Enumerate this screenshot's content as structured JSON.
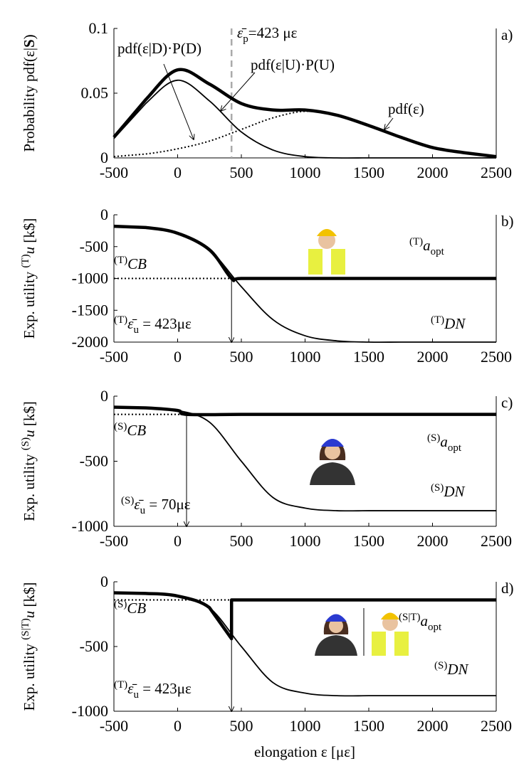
{
  "chart_data": [
    {
      "type": "line",
      "panel_label": "a)",
      "ylabel": {
        "pre": "Probability pdf(ε|",
        "bold": "S",
        "post": ")"
      },
      "xlabel": "elongation ε [με]",
      "xlim": [
        -500,
        2500
      ],
      "xticks": [
        -500,
        0,
        500,
        1000,
        1500,
        2000,
        2500
      ],
      "ylim": [
        0,
        0.1
      ],
      "yticks": [
        0,
        0.05,
        0.1
      ],
      "threshold": 423,
      "threshold_label": {
        "base": "ε̄",
        "sub": "p",
        "post": "=423 με"
      },
      "series": [
        {
          "name": {
            "pre": "pdf(ε)"
          },
          "color": "#000000",
          "style": "thick",
          "x": [
            -500,
            -250,
            0,
            250,
            500,
            750,
            1000,
            1250,
            1500,
            1750,
            2000,
            2250,
            2500
          ],
          "values": [
            0.016,
            0.045,
            0.068,
            0.057,
            0.042,
            0.037,
            0.037,
            0.033,
            0.025,
            0.016,
            0.008,
            0.004,
            0.001
          ]
        },
        {
          "name": {
            "pre": "pdf(ε|D)·P(D)"
          },
          "color": "#000000",
          "style": "thin",
          "x": [
            -500,
            -250,
            0,
            250,
            500,
            750,
            1000,
            1250,
            1500,
            1750,
            2000,
            2250,
            2500
          ],
          "values": [
            0.015,
            0.042,
            0.06,
            0.044,
            0.02,
            0.006,
            0.001,
            0,
            0,
            0,
            0,
            0,
            0
          ]
        },
        {
          "name": {
            "pre": "pdf(ε|U)·P(U)"
          },
          "color": "#000000",
          "style": "dotted",
          "x": [
            -500,
            -250,
            0,
            250,
            500,
            750,
            1000,
            1250,
            1500,
            1750,
            2000,
            2250,
            2500
          ],
          "values": [
            0.001,
            0.003,
            0.007,
            0.013,
            0.022,
            0.031,
            0.036,
            0.033,
            0.025,
            0.016,
            0.008,
            0.004,
            0.001
          ]
        }
      ]
    },
    {
      "type": "line",
      "panel_label": "b)",
      "ylabel": {
        "pre": "Exp. utility ",
        "sup": "(T)",
        "base": "u",
        "post": "  [k$]"
      },
      "xlim": [
        -500,
        2500
      ],
      "xticks": [
        -500,
        0,
        500,
        1000,
        1500,
        2000,
        2500
      ],
      "ylim": [
        -2000,
        0
      ],
      "yticks": [
        -2000,
        -1500,
        -1000,
        -500,
        0
      ],
      "threshold": 423,
      "threshold_label": {
        "sup": "(T)",
        "base": "ε̄",
        "sub": "u",
        "post": " = 423με"
      },
      "series": [
        {
          "name": {
            "sup": "(T)",
            "base": "DN"
          },
          "color": "#000000",
          "style": "thin",
          "x": [
            -500,
            -250,
            0,
            250,
            500,
            750,
            1000,
            1250,
            1500,
            1750,
            2000,
            2250,
            2500
          ],
          "values": [
            -180,
            -200,
            -290,
            -550,
            -1130,
            -1650,
            -1900,
            -1980,
            -2000,
            -2000,
            -2000,
            -2000,
            -2000
          ]
        },
        {
          "name": {
            "sup": "(T)",
            "base": "CB"
          },
          "color": "#000000",
          "style": "dotted",
          "x": [
            -500,
            2500
          ],
          "values": [
            -1000,
            -1000
          ]
        },
        {
          "name": {
            "sup": "(T)",
            "base": "a",
            "sub": "opt"
          },
          "color": "#000000",
          "style": "thick",
          "x": [
            -500,
            -250,
            0,
            250,
            423,
            500,
            1000,
            1500,
            2000,
            2500
          ],
          "values": [
            -180,
            -200,
            -290,
            -550,
            -1000,
            -1000,
            -1000,
            -1000,
            -1000,
            -1000
          ]
        }
      ]
    },
    {
      "type": "line",
      "panel_label": "c)",
      "ylabel": {
        "pre": "Exp. utility ",
        "sup": "(S)",
        "base": "u",
        "post": "  [k$]"
      },
      "xlim": [
        -500,
        2500
      ],
      "xticks": [
        -500,
        0,
        500,
        1000,
        1500,
        2000,
        2500
      ],
      "ylim": [
        -1000,
        0
      ],
      "yticks": [
        -1000,
        -500,
        0
      ],
      "threshold": 70,
      "threshold_label": {
        "sup": "(S)",
        "base": "ε̄",
        "sub": "u",
        "post": " = 70με"
      },
      "series": [
        {
          "name": {
            "sup": "(S)",
            "base": "DN"
          },
          "color": "#000000",
          "style": "thin",
          "x": [
            -500,
            -250,
            0,
            250,
            500,
            750,
            1000,
            1250,
            1500,
            1750,
            2000,
            2250,
            2500
          ],
          "values": [
            -85,
            -90,
            -110,
            -200,
            -500,
            -780,
            -860,
            -880,
            -880,
            -880,
            -880,
            -880,
            -880
          ]
        },
        {
          "name": {
            "sup": "(S)",
            "base": "CB"
          },
          "color": "#000000",
          "style": "dotted",
          "x": [
            -500,
            2500
          ],
          "values": [
            -140,
            -140
          ]
        },
        {
          "name": {
            "sup": "(S)",
            "base": "a",
            "sub": "opt"
          },
          "color": "#000000",
          "style": "thick",
          "x": [
            -500,
            -250,
            0,
            70,
            500,
            1000,
            1500,
            2000,
            2500
          ],
          "values": [
            -85,
            -90,
            -110,
            -140,
            -140,
            -140,
            -140,
            -140,
            -140
          ]
        }
      ]
    },
    {
      "type": "line",
      "panel_label": "d)",
      "ylabel": {
        "pre": "Exp. utility ",
        "sup": "(S|T)",
        "base": "u",
        "post": "  [k$]"
      },
      "xlim": [
        -500,
        2500
      ],
      "xticks": [
        -500,
        0,
        500,
        1000,
        1500,
        2000,
        2500
      ],
      "ylim": [
        -1000,
        0
      ],
      "yticks": [
        -1000,
        -500,
        0
      ],
      "threshold": 423,
      "threshold_label": {
        "sup": "(T)",
        "base": "ε̄",
        "sub": "u",
        "post": " = 423με"
      },
      "series": [
        {
          "name": {
            "sup": "(S)",
            "base": "DN"
          },
          "color": "#000000",
          "style": "thin",
          "x": [
            -500,
            -250,
            0,
            250,
            500,
            750,
            1000,
            1250,
            1500,
            1750,
            2000,
            2250,
            2500
          ],
          "values": [
            -85,
            -90,
            -110,
            -200,
            -500,
            -780,
            -860,
            -880,
            -880,
            -880,
            -880,
            -880,
            -880
          ]
        },
        {
          "name": {
            "sup": "(S)",
            "base": "CB"
          },
          "color": "#000000",
          "style": "dotted",
          "x": [
            -500,
            2500
          ],
          "values": [
            -140,
            -140
          ]
        },
        {
          "name": {
            "sup": "(S|T)",
            "base": "a",
            "sub": "opt"
          },
          "color": "#000000",
          "style": "thick",
          "x": [
            -500,
            -250,
            0,
            250,
            423,
            423,
            500,
            1000,
            1500,
            2000,
            2500
          ],
          "values": [
            -85,
            -90,
            -110,
            -200,
            -440,
            -140,
            -140,
            -140,
            -140,
            -140,
            -140
          ]
        }
      ]
    }
  ]
}
